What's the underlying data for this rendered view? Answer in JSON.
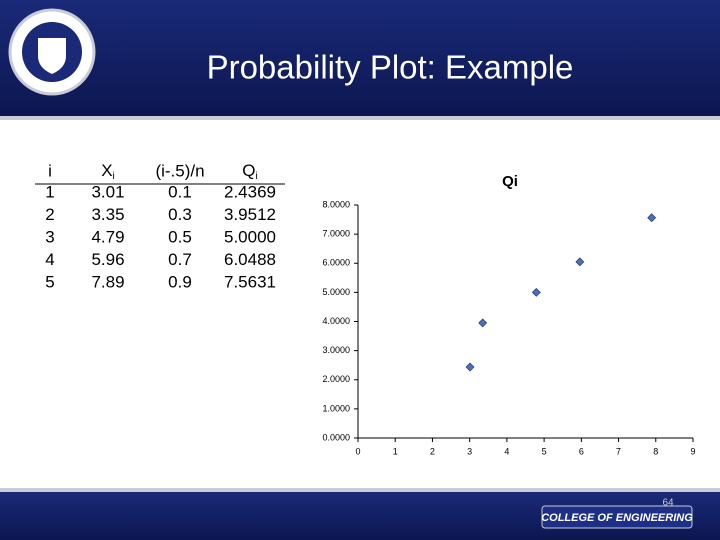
{
  "header": {
    "title": "Probability Plot: Example"
  },
  "table": {
    "columns": [
      "i",
      {
        "text": "X",
        "sub": "i"
      },
      "(i-.5)/n",
      {
        "text": "Q",
        "sub": "i"
      }
    ],
    "rows": [
      [
        "1",
        "3.01",
        "0.1",
        "2.4369"
      ],
      [
        "2",
        "3.35",
        "0.3",
        "3.9512"
      ],
      [
        "3",
        "4.79",
        "0.5",
        "5.0000"
      ],
      [
        "4",
        "5.96",
        "0.7",
        "6.0488"
      ],
      [
        "5",
        "7.89",
        "0.9",
        "7.5631"
      ]
    ]
  },
  "chart_data": {
    "type": "scatter",
    "title": "Qi",
    "x": [
      3.01,
      3.35,
      4.79,
      5.96,
      7.89
    ],
    "values": [
      2.4369,
      3.9512,
      5.0,
      6.0488,
      7.5631
    ],
    "color": "#4a6fb5",
    "xlim": [
      0,
      9
    ],
    "xticks": [
      0,
      1,
      2,
      3,
      4,
      5,
      6,
      7,
      8,
      9
    ],
    "ylim": [
      0,
      8
    ],
    "yticks": [
      {
        "value": 0,
        "label": "0.0000"
      },
      {
        "value": 1,
        "label": "1.0000"
      },
      {
        "value": 2,
        "label": "2.0000"
      },
      {
        "value": 3,
        "label": "3.0000"
      },
      {
        "value": 4,
        "label": "4.0000"
      },
      {
        "value": 5,
        "label": "5.0000"
      },
      {
        "value": 6,
        "label": "6.0000"
      },
      {
        "value": 7,
        "label": "7.0000"
      },
      {
        "value": 8,
        "label": "8.0000"
      }
    ]
  },
  "footer": {
    "logo_text": "COLLEGE OF ENGINEERING",
    "page_number": "64"
  }
}
